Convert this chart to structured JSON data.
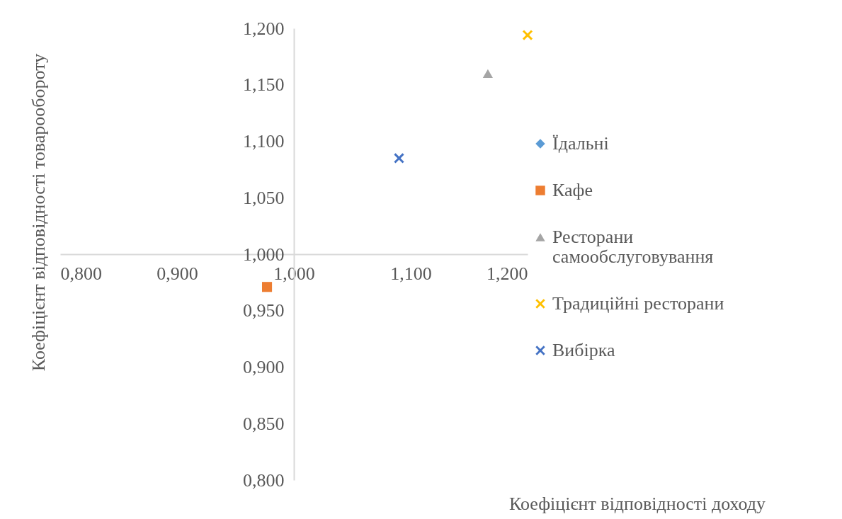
{
  "chart_data": {
    "type": "scatter",
    "xlabel": "Коефіцієнт відповідності доходу",
    "ylabel": "Коефіцієнт відповідності товарообороту",
    "xlim": [
      0.8,
      1.2
    ],
    "ylim": [
      0.8,
      1.2
    ],
    "xticks": [
      {
        "value": 0.8,
        "label": "0,800"
      },
      {
        "value": 0.9,
        "label": "0,900"
      },
      {
        "value": 1.0,
        "label": "1,000"
      },
      {
        "value": 1.1,
        "label": "1,100"
      },
      {
        "value": 1.2,
        "label": "1,200"
      }
    ],
    "yticks": [
      {
        "value": 0.8,
        "label": "0,800"
      },
      {
        "value": 0.85,
        "label": "0,850"
      },
      {
        "value": 0.9,
        "label": "0,900"
      },
      {
        "value": 0.95,
        "label": "0,950"
      },
      {
        "value": 1.0,
        "label": "1,000"
      },
      {
        "value": 1.05,
        "label": "1,050"
      },
      {
        "value": 1.1,
        "label": "1,100"
      },
      {
        "value": 1.15,
        "label": "1,150"
      },
      {
        "value": 1.2,
        "label": "1,200"
      }
    ],
    "grid": false,
    "legend": "right",
    "series": [
      {
        "name": "Їдальні",
        "color": "#5b9bd5",
        "marker": "diamond",
        "x": [
          null
        ],
        "values": [
          null
        ]
      },
      {
        "name": "Кафе",
        "color": "#ed7d31",
        "marker": "square",
        "x": [
          0.977
        ],
        "values": [
          0.971
        ]
      },
      {
        "name": "Ресторани самообслуговування",
        "color": "#a5a5a5",
        "marker": "triangle",
        "x": [
          1.166
        ],
        "values": [
          1.16
        ]
      },
      {
        "name": "Традиційні ресторани",
        "color": "#ffc000",
        "marker": "cross",
        "x": [
          1.2
        ],
        "values": [
          1.194
        ]
      },
      {
        "name": "Вибірка",
        "color": "#4472c4",
        "marker": "cross",
        "x": [
          1.09
        ],
        "values": [
          1.085
        ]
      }
    ]
  }
}
